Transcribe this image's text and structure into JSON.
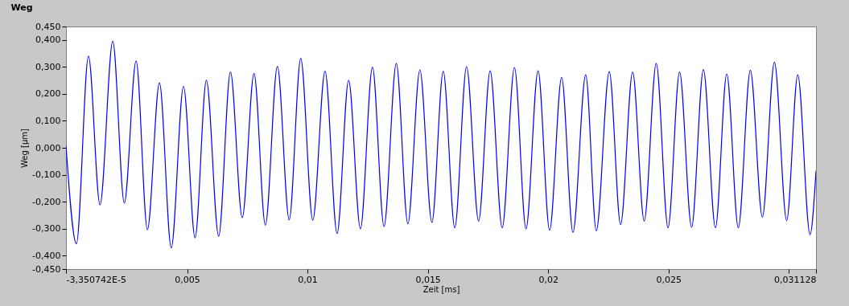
{
  "chart_data": {
    "type": "line",
    "title": "Weg",
    "xlabel": "Zeit [ms]",
    "ylabel": "Weg [µm]",
    "xlim": [
      -3.350742e-05,
      0.031128
    ],
    "ylim": [
      -0.45,
      0.45
    ],
    "xticks": [
      {
        "value": -3.350742e-05,
        "label": "-3,350742E-5"
      },
      {
        "value": 0.005,
        "label": "0,005"
      },
      {
        "value": 0.01,
        "label": "0,01"
      },
      {
        "value": 0.015,
        "label": "0,015"
      },
      {
        "value": 0.02,
        "label": "0,02"
      },
      {
        "value": 0.025,
        "label": "0,025"
      },
      {
        "value": 0.03,
        "label": null
      },
      {
        "value": 0.031128,
        "label": "0,031128"
      }
    ],
    "yticks": [
      {
        "value": 0.45,
        "label": "0,450"
      },
      {
        "value": 0.4,
        "label": "0,400"
      },
      {
        "value": 0.3,
        "label": "0,300"
      },
      {
        "value": 0.2,
        "label": "0,200"
      },
      {
        "value": 0.1,
        "label": "0,100"
      },
      {
        "value": 0,
        "label": "0,000"
      },
      {
        "value": -0.1,
        "label": "-0,100"
      },
      {
        "value": -0.2,
        "label": "-0,200"
      },
      {
        "value": -0.3,
        "label": "-0,300"
      },
      {
        "value": -0.4,
        "label": "-0,400"
      },
      {
        "value": -0.45,
        "label": "-0,450"
      }
    ],
    "marker": "none",
    "line_style": "solid",
    "series": [
      {
        "color": "#0000ff",
        "x": [
          -3.350742e-05,
          0.0004,
          0.0009,
          0.00138,
          0.00191,
          0.00239,
          0.00288,
          0.00335,
          0.00385,
          0.00434,
          0.00485,
          0.00533,
          0.0058,
          0.00631,
          0.0068,
          0.00729,
          0.00778,
          0.00825,
          0.00875,
          0.00924,
          0.00972,
          0.01022,
          0.01073,
          0.01123,
          0.01171,
          0.0122,
          0.0127,
          0.01318,
          0.01369,
          0.01417,
          0.01467,
          0.01517,
          0.01564,
          0.01612,
          0.01661,
          0.01711,
          0.01759,
          0.01809,
          0.0186,
          0.01908,
          0.01958,
          0.02006,
          0.02056,
          0.02103,
          0.02156,
          0.022,
          0.02254,
          0.02301,
          0.02351,
          0.02399,
          0.02449,
          0.02498,
          0.02546,
          0.02596,
          0.02645,
          0.02695,
          0.02742,
          0.0279,
          0.0284,
          0.0289,
          0.0294,
          0.02991,
          0.03037,
          0.03088,
          0.031128
        ],
        "values": [
          0.007,
          -0.356,
          0.34,
          -0.212,
          0.395,
          -0.205,
          0.322,
          -0.304,
          0.241,
          -0.371,
          0.228,
          -0.334,
          0.251,
          -0.328,
          0.281,
          -0.259,
          0.276,
          -0.287,
          0.302,
          -0.267,
          0.332,
          -0.269,
          0.284,
          -0.318,
          0.251,
          -0.301,
          0.299,
          -0.292,
          0.313,
          -0.282,
          0.289,
          -0.277,
          0.284,
          -0.297,
          0.301,
          -0.272,
          0.286,
          -0.297,
          0.298,
          -0.301,
          0.286,
          -0.306,
          0.261,
          -0.314,
          0.271,
          -0.308,
          0.283,
          -0.285,
          0.281,
          -0.272,
          0.313,
          -0.297,
          0.281,
          -0.295,
          0.29,
          -0.297,
          0.274,
          -0.297,
          0.288,
          -0.257,
          0.318,
          -0.27,
          0.271,
          -0.322,
          -0.086
        ]
      }
    ]
  }
}
